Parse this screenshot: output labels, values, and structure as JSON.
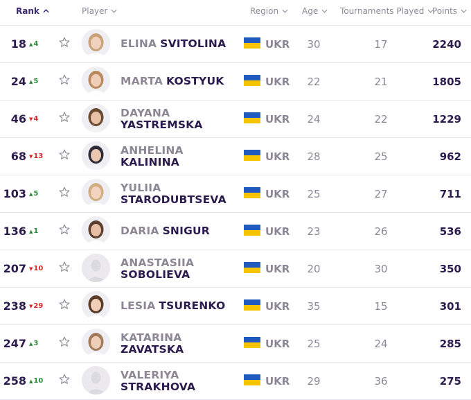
{
  "header": {
    "rank": "Rank",
    "player": "Player",
    "region": "Region",
    "age": "Age",
    "tournaments": "Tournaments Played",
    "points": "Points"
  },
  "colors": {
    "flag_blue": "#1f5bbf",
    "flag_yellow": "#f6c300",
    "move_up": "#2e8b3d",
    "move_down": "#d62b2b",
    "text_dark": "#2b1b4f",
    "text_muted": "#8b8795"
  },
  "players": [
    {
      "rank": "18",
      "move": "4",
      "dir": "up",
      "first": "ELINA",
      "last": "SVITOLINA",
      "country": "UKR",
      "age": "30",
      "tournaments": "17",
      "points": "2240",
      "avatar": "photo",
      "inline": true
    },
    {
      "rank": "24",
      "move": "5",
      "dir": "up",
      "first": "MARTA",
      "last": "KOSTYUK",
      "country": "UKR",
      "age": "22",
      "tournaments": "21",
      "points": "1805",
      "avatar": "photo",
      "inline": true
    },
    {
      "rank": "46",
      "move": "4",
      "dir": "down",
      "first": "DAYANA",
      "last": "YASTREMSKA",
      "country": "UKR",
      "age": "24",
      "tournaments": "22",
      "points": "1229",
      "avatar": "photo",
      "inline": false
    },
    {
      "rank": "68",
      "move": "13",
      "dir": "down",
      "first": "ANHELINA",
      "last": "KALININA",
      "country": "UKR",
      "age": "28",
      "tournaments": "25",
      "points": "962",
      "avatar": "photo",
      "inline": false
    },
    {
      "rank": "103",
      "move": "5",
      "dir": "up",
      "first": "YULIIA",
      "last": "STARODUBTSEVA",
      "country": "UKR",
      "age": "25",
      "tournaments": "27",
      "points": "711",
      "avatar": "photo",
      "inline": false
    },
    {
      "rank": "136",
      "move": "1",
      "dir": "up",
      "first": "DARIA",
      "last": "SNIGUR",
      "country": "UKR",
      "age": "23",
      "tournaments": "26",
      "points": "536",
      "avatar": "photo",
      "inline": true
    },
    {
      "rank": "207",
      "move": "10",
      "dir": "down",
      "first": "ANASTASIIA",
      "last": "SOBOLIEVA",
      "country": "UKR",
      "age": "20",
      "tournaments": "30",
      "points": "350",
      "avatar": "placeholder",
      "inline": false
    },
    {
      "rank": "238",
      "move": "29",
      "dir": "down",
      "first": "LESIA",
      "last": "TSURENKO",
      "country": "UKR",
      "age": "35",
      "tournaments": "15",
      "points": "301",
      "avatar": "photo",
      "inline": true
    },
    {
      "rank": "247",
      "move": "3",
      "dir": "up",
      "first": "KATARINA",
      "last": "ZAVATSKA",
      "country": "UKR",
      "age": "25",
      "tournaments": "24",
      "points": "285",
      "avatar": "photo",
      "inline": false
    },
    {
      "rank": "258",
      "move": "10",
      "dir": "up",
      "first": "VALERIYA",
      "last": "STRAKHOVA",
      "country": "UKR",
      "age": "29",
      "tournaments": "36",
      "points": "275",
      "avatar": "placeholder",
      "inline": false
    }
  ]
}
